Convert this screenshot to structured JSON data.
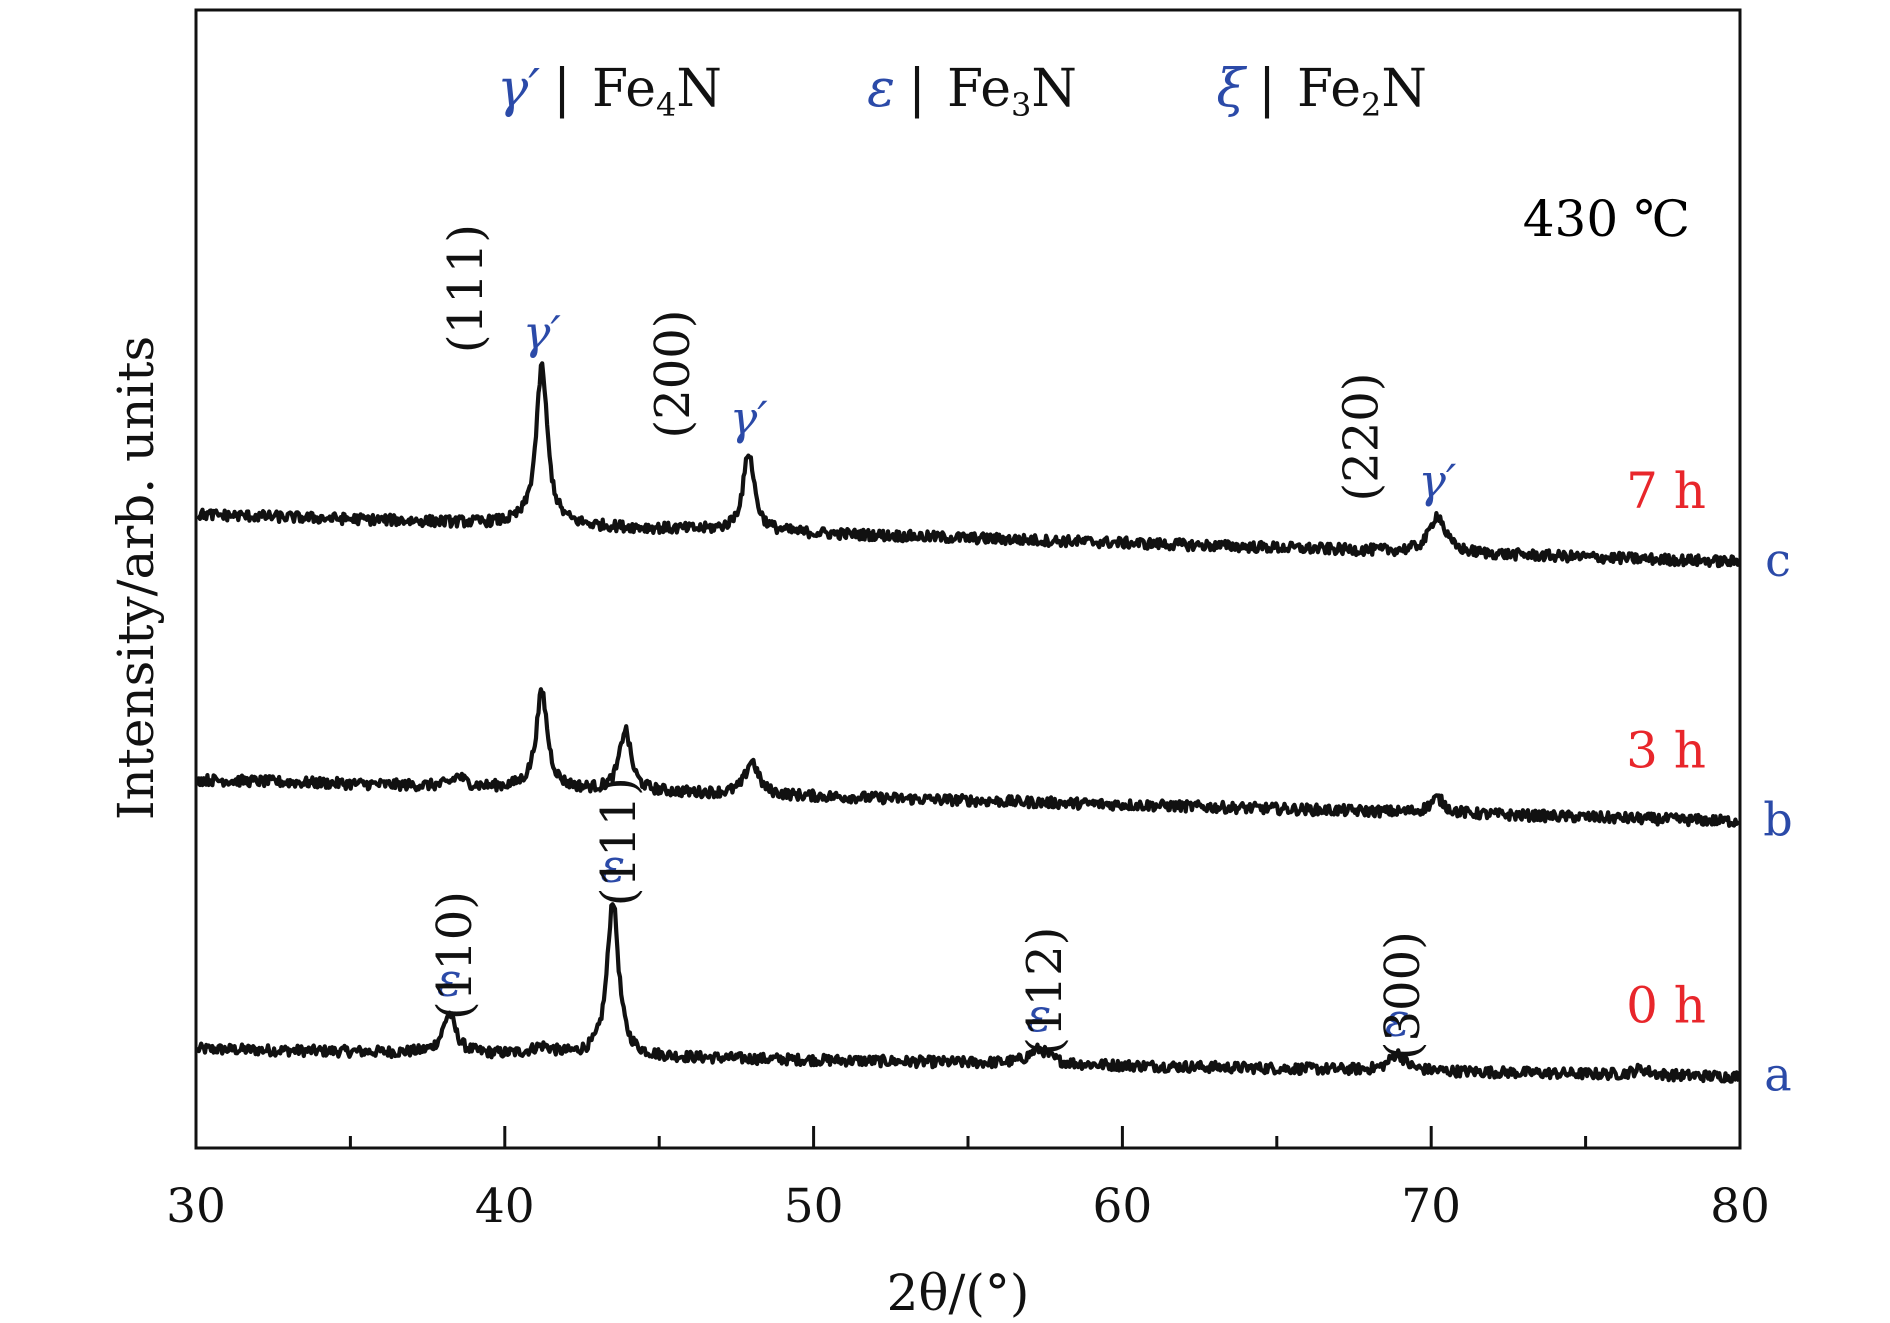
{
  "chart_data": {
    "type": "line",
    "xlabel": "2θ/(°)",
    "ylabel": "Intensity/arb. units",
    "xlim": [
      30,
      80
    ],
    "x_ticks": [
      "30",
      "40",
      "50",
      "60",
      "70",
      "80"
    ],
    "grid": false,
    "colors": {
      "curve": "#111111",
      "blue": "#2b4aa8",
      "red": "#e8262b"
    },
    "temperature_label": "430 ℃",
    "legend": [
      {
        "symbol": "γ′",
        "sep": "|",
        "text": "Fe",
        "sub": "4",
        "tail": "N"
      },
      {
        "symbol": "ε",
        "sep": "|",
        "text": "Fe",
        "sub": "3",
        "tail": "N"
      },
      {
        "symbol": "ξ",
        "sep": "|",
        "text": "Fe",
        "sub": "2",
        "tail": "N"
      }
    ],
    "series": [
      {
        "id": "a",
        "time": "0 h",
        "baseline": [
          [
            30,
            100
          ],
          [
            80,
            72
          ]
        ],
        "peaks": [
          [
            38.2,
            40,
            0.25
          ],
          [
            41.2,
            8,
            0.4
          ],
          [
            43.5,
            158,
            0.22
          ],
          [
            57.3,
            15,
            0.4
          ],
          [
            68.9,
            17,
            0.3
          ],
          [
            76.8,
            6,
            0.3
          ]
        ]
      },
      {
        "id": "b",
        "time": "3 h",
        "baseline": [
          [
            30,
            372
          ],
          [
            80,
            330
          ]
        ],
        "peaks": [
          [
            38.5,
            10,
            0.25
          ],
          [
            41.2,
            98,
            0.22
          ],
          [
            43.9,
            62,
            0.22
          ],
          [
            48.0,
            34,
            0.25
          ],
          [
            70.2,
            15,
            0.28
          ]
        ]
      },
      {
        "id": "c",
        "time": "7 h",
        "baseline": [
          [
            30,
            640
          ],
          [
            80,
            592
          ]
        ],
        "peaks": [
          [
            41.2,
            160,
            0.22
          ],
          [
            47.9,
            80,
            0.22
          ],
          [
            70.2,
            38,
            0.3
          ]
        ]
      }
    ],
    "annotations": [
      {
        "series": "c",
        "phase": "γ′",
        "hkl": "(111)",
        "x": 41.2
      },
      {
        "series": "c",
        "phase": "γ′",
        "hkl": "(200)",
        "x": 47.9
      },
      {
        "series": "c",
        "phase": "γ′",
        "hkl": "(220)",
        "x": 70.2
      },
      {
        "series": "a",
        "phase": "ε",
        "hkl": "(110)",
        "x": 38.2
      },
      {
        "series": "a",
        "phase": "ε",
        "hkl": "(111)",
        "x": 43.5
      },
      {
        "series": "a",
        "phase": "ε",
        "hkl": "(112)",
        "x": 57.3
      },
      {
        "series": "a",
        "phase": "ε",
        "hkl": "(300)",
        "x": 68.9
      }
    ]
  }
}
